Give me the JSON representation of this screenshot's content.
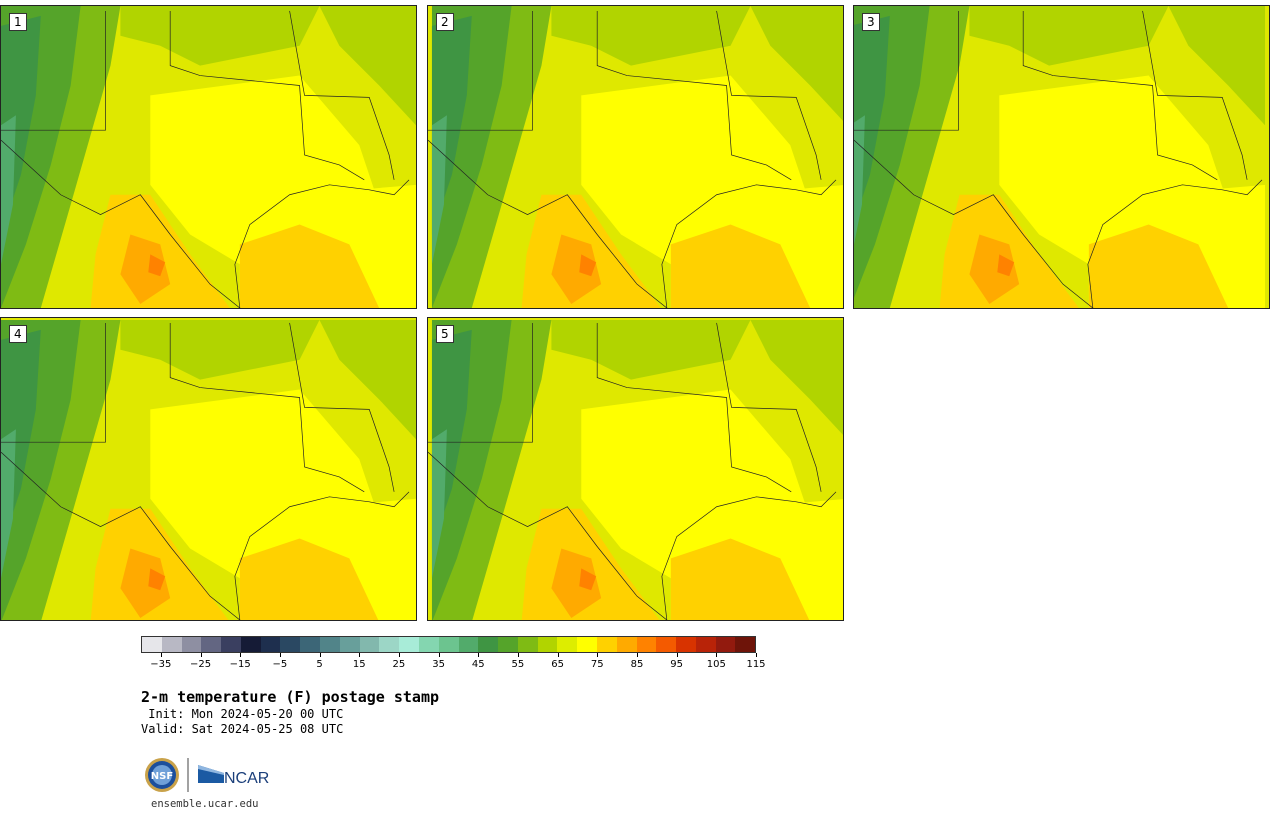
{
  "panels": [
    {
      "label": "1"
    },
    {
      "label": "2"
    },
    {
      "label": "3"
    },
    {
      "label": "4"
    },
    {
      "label": "5"
    }
  ],
  "colorbar": {
    "colors": [
      "#e6e6ea",
      "#b8b8c4",
      "#8e8fa2",
      "#636682",
      "#3a3f60",
      "#151b36",
      "#1e2f4e",
      "#2a4862",
      "#3c6677",
      "#518489",
      "#689f9b",
      "#82b8ad",
      "#9cd6c6",
      "#a8ecd8",
      "#84d6b0",
      "#6cc48f",
      "#52ab6b",
      "#3f9543",
      "#55a42a",
      "#7fbb14",
      "#b1d400",
      "#dded00",
      "#ffff00",
      "#ffd100",
      "#ffaa00",
      "#ff8200",
      "#f45a00",
      "#d83300",
      "#b82308",
      "#921a0e",
      "#6e1409"
    ],
    "tick_labels": [
      "−35",
      "−25",
      "−15",
      "−5",
      "5",
      "15",
      "25",
      "35",
      "45",
      "55",
      "65",
      "75",
      "85",
      "95",
      "105",
      "115"
    ],
    "min": -40,
    "max": 115,
    "tick_values": [
      -35,
      -25,
      -15,
      -5,
      5,
      15,
      25,
      35,
      45,
      55,
      65,
      75,
      85,
      95,
      105,
      115
    ]
  },
  "text": {
    "title": "2-m temperature (F) postage stamp",
    "init": " Init: Mon 2024-05-20 00 UTC",
    "valid": "Valid: Sat 2024-05-25 08 UTC",
    "site": "ensemble.ucar.edu",
    "ncar": "NCAR",
    "nsf": "NSF"
  }
}
